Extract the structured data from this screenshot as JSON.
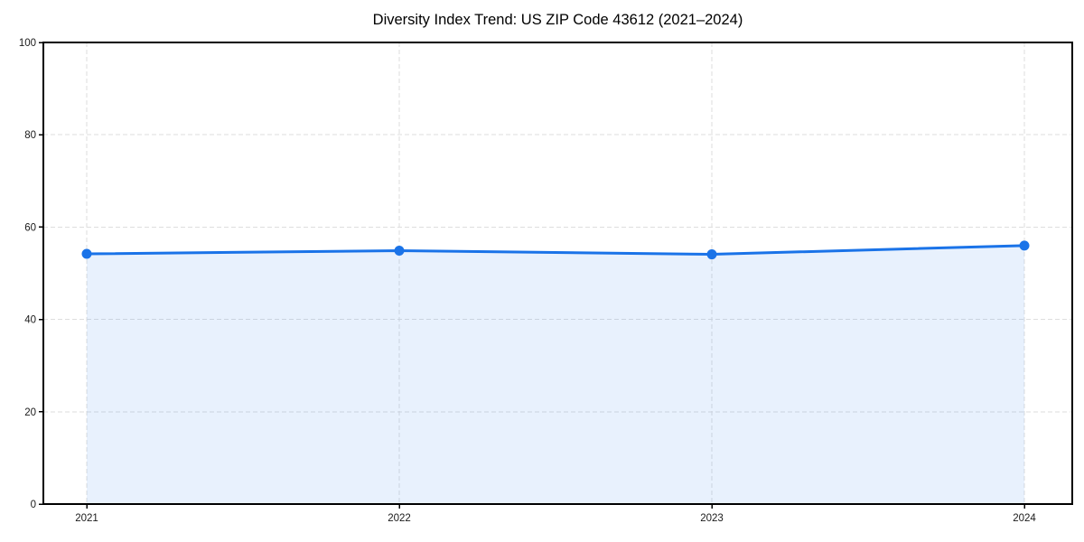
{
  "chart_data": {
    "type": "area",
    "title": "Diversity Index Trend: US ZIP Code 43612 (2021–2024)",
    "categories": [
      "2021",
      "2022",
      "2023",
      "2024"
    ],
    "series": [
      {
        "name": "Diversity Index",
        "values": [
          54.2,
          54.9,
          54.1,
          56.0
        ]
      }
    ],
    "xlabel": "",
    "ylabel": "",
    "ylim": [
      0,
      100
    ],
    "yticks": [
      0,
      20,
      40,
      60,
      80,
      100
    ],
    "grid": "dashed both axes",
    "legend": "none",
    "colors": {
      "line": "#1a73e8",
      "marker": "#1a73e8",
      "fill": "rgba(26,115,232,0.10)",
      "grid": "#dedede",
      "axis": "#000000",
      "tick_text": "#1a1a1a",
      "background": "#ffffff"
    }
  }
}
